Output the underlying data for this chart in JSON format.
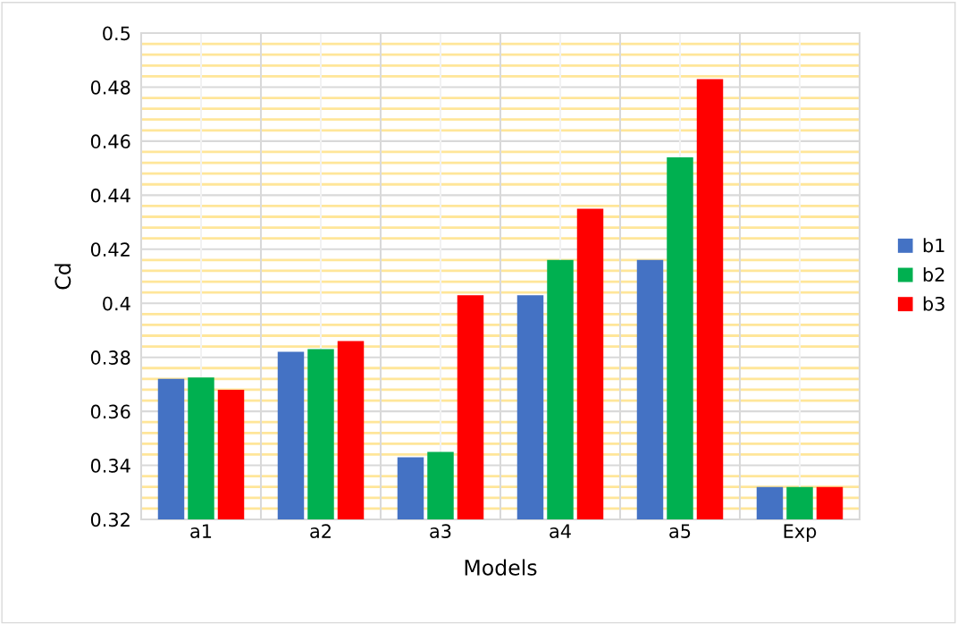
{
  "chart_data": {
    "type": "bar",
    "xlabel": "Models",
    "ylabel": "Cd",
    "categories": [
      "a1",
      "a2",
      "a3",
      "a4",
      "a5",
      "Exp"
    ],
    "series": [
      {
        "name": "b1",
        "color": "#4472c4",
        "values": [
          0.372,
          0.382,
          0.343,
          0.403,
          0.416,
          0.332
        ]
      },
      {
        "name": "b2",
        "color": "#00b050",
        "values": [
          0.3725,
          0.383,
          0.345,
          0.416,
          0.454,
          0.332
        ]
      },
      {
        "name": "b3",
        "color": "#ff0000",
        "values": [
          0.368,
          0.386,
          0.403,
          0.435,
          0.483,
          0.332
        ]
      }
    ],
    "ylim": [
      0.32,
      0.5
    ],
    "yticks": [
      0.32,
      {
        "value": 0.324,
        "label": null
      },
      {
        "value": 0.328,
        "label": null
      },
      {
        "value": 0.332,
        "label": null
      },
      {
        "value": 0.336,
        "label": null
      },
      0.34,
      {
        "value": 0.344,
        "label": null
      },
      {
        "value": 0.348,
        "label": null
      },
      {
        "value": 0.352,
        "label": null
      },
      {
        "value": 0.356,
        "label": null
      },
      0.36,
      {
        "value": 0.364,
        "label": null
      },
      {
        "value": 0.368,
        "label": null
      },
      {
        "value": 0.372,
        "label": null
      },
      {
        "value": 0.376,
        "label": null
      },
      0.38,
      {
        "value": 0.384,
        "label": null
      },
      {
        "value": 0.388,
        "label": null
      },
      {
        "value": 0.392,
        "label": null
      },
      {
        "value": 0.396,
        "label": null
      },
      0.4,
      {
        "value": 0.404,
        "label": null
      },
      {
        "value": 0.408,
        "label": null
      },
      {
        "value": 0.412,
        "label": null
      },
      {
        "value": 0.416,
        "label": null
      },
      0.42,
      {
        "value": 0.424,
        "label": null
      },
      {
        "value": 0.428,
        "label": null
      },
      {
        "value": 0.432,
        "label": null
      },
      {
        "value": 0.436,
        "label": null
      },
      0.44,
      {
        "value": 0.444,
        "label": null
      },
      {
        "value": 0.448,
        "label": null
      },
      {
        "value": 0.452,
        "label": null
      },
      {
        "value": 0.456,
        "label": null
      },
      0.46,
      {
        "value": 0.464,
        "label": null
      },
      {
        "value": 0.468,
        "label": null
      },
      {
        "value": 0.472,
        "label": null
      },
      {
        "value": 0.476,
        "label": null
      },
      0.48,
      {
        "value": 0.484,
        "label": null
      },
      {
        "value": 0.488,
        "label": null
      },
      {
        "value": 0.492,
        "label": null
      },
      {
        "value": 0.496,
        "label": null
      },
      0.5
    ],
    "grid": true,
    "legend": "right"
  }
}
